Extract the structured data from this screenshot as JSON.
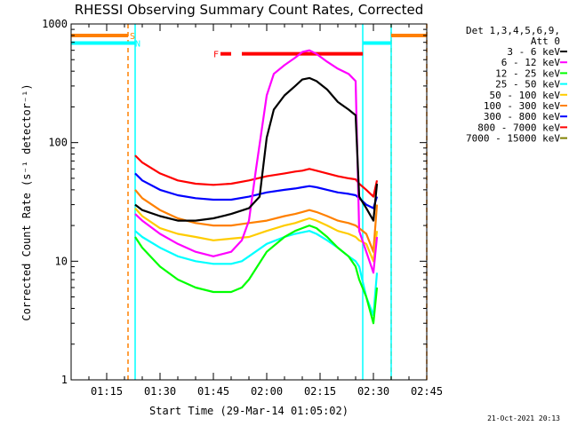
{
  "chart_data": {
    "type": "line",
    "title": "RHESSI Observing Summary Count Rates, Corrected",
    "xlabel": "Start Time (29-Mar-14 01:05:02)",
    "ylabel": "Corrected Count Rate (s⁻¹ detector⁻¹)",
    "y_scale": "log",
    "ylim": [
      1,
      1000
    ],
    "xlim_minutes": [
      0,
      100
    ],
    "y_ticks": [
      {
        "value": 1,
        "label": "1"
      },
      {
        "value": 10,
        "label": "10"
      },
      {
        "value": 100,
        "label": "100"
      },
      {
        "value": 1000,
        "label": "1000"
      }
    ],
    "x_ticks": [
      {
        "value": 10,
        "label": "01:15"
      },
      {
        "value": 25,
        "label": "01:30"
      },
      {
        "value": 40,
        "label": "01:45"
      },
      {
        "value": 55,
        "label": "02:00"
      },
      {
        "value": 70,
        "label": "02:15"
      },
      {
        "value": 85,
        "label": "02:30"
      },
      {
        "value": 100,
        "label": "02:45"
      }
    ],
    "legend_header": [
      "Det 1,3,4,5,6,9,",
      "Att 0"
    ],
    "series": [
      {
        "name": "3 - 6 keV",
        "color": "#000000",
        "x": [
          18,
          20,
          25,
          30,
          35,
          40,
          45,
          50,
          53,
          55,
          57,
          60,
          63,
          65,
          67,
          69,
          72,
          75,
          78,
          80,
          81,
          83,
          85,
          86
        ],
        "y": [
          30,
          27,
          24,
          22,
          22,
          23,
          25,
          28,
          35,
          110,
          190,
          250,
          300,
          340,
          350,
          330,
          280,
          220,
          190,
          170,
          35,
          28,
          22,
          45
        ]
      },
      {
        "name": "6 - 12 keV",
        "color": "#ff00ff",
        "x": [
          18,
          20,
          25,
          30,
          35,
          40,
          45,
          48,
          50,
          52,
          55,
          57,
          60,
          63,
          65,
          67,
          69,
          72,
          75,
          78,
          80,
          81,
          83,
          85,
          86
        ],
        "y": [
          25,
          22,
          17,
          14,
          12,
          11,
          12,
          15,
          22,
          60,
          250,
          380,
          450,
          520,
          580,
          600,
          560,
          480,
          420,
          380,
          330,
          18,
          12,
          8,
          16
        ]
      },
      {
        "name": "12 - 25 keV",
        "color": "#00ff00",
        "x": [
          18,
          20,
          25,
          30,
          35,
          40,
          45,
          48,
          50,
          55,
          60,
          63,
          65,
          67,
          69,
          72,
          75,
          78,
          80,
          81,
          83,
          85,
          86
        ],
        "y": [
          16,
          13,
          9,
          7,
          6,
          5.5,
          5.5,
          6,
          7,
          12,
          16,
          18,
          19,
          20,
          19,
          16,
          13,
          11,
          9,
          7,
          5,
          3,
          6
        ]
      },
      {
        "name": "25 - 50 keV",
        "color": "#00ffff",
        "x": [
          18,
          20,
          25,
          30,
          35,
          40,
          45,
          48,
          50,
          55,
          60,
          63,
          65,
          67,
          69,
          72,
          75,
          78,
          80,
          81,
          83,
          85,
          86
        ],
        "y": [
          18,
          16,
          13,
          11,
          10,
          9.5,
          9.5,
          10,
          11,
          14,
          16,
          17,
          17.5,
          18,
          17,
          15,
          13,
          11,
          10,
          9,
          5,
          3.5,
          8
        ]
      },
      {
        "name": "50 - 100 keV",
        "color": "#ffcc00",
        "x": [
          18,
          20,
          25,
          30,
          35,
          40,
          45,
          50,
          55,
          60,
          63,
          65,
          67,
          69,
          72,
          75,
          78,
          80,
          81,
          83,
          85,
          86
        ],
        "y": [
          28,
          24,
          19,
          17,
          16,
          15,
          15.5,
          16,
          18,
          20,
          21,
          22,
          23,
          22,
          20,
          18,
          17,
          16,
          15,
          14,
          10,
          18
        ]
      },
      {
        "name": "100 - 300 keV",
        "color": "#ff8000",
        "x": [
          18,
          20,
          25,
          30,
          35,
          40,
          45,
          50,
          55,
          60,
          63,
          65,
          67,
          69,
          72,
          75,
          78,
          80,
          81,
          83,
          85,
          86
        ],
        "y": [
          40,
          34,
          27,
          23,
          21,
          20,
          20,
          21,
          22,
          24,
          25,
          26,
          27,
          26,
          24,
          22,
          21,
          20,
          19,
          17,
          12,
          30
        ]
      },
      {
        "name": "300 - 800 keV",
        "color": "#0000ff",
        "x": [
          18,
          20,
          25,
          30,
          35,
          40,
          45,
          50,
          55,
          60,
          63,
          65,
          67,
          69,
          72,
          75,
          78,
          80,
          81,
          83,
          85,
          86
        ],
        "y": [
          55,
          48,
          40,
          36,
          34,
          33,
          33,
          35,
          38,
          40,
          41,
          42,
          43,
          42,
          40,
          38,
          37,
          36,
          34,
          30,
          28,
          35
        ]
      },
      {
        "name": "800 - 7000 keV",
        "color": "#ff0000",
        "x": [
          18,
          20,
          25,
          30,
          35,
          40,
          45,
          50,
          55,
          60,
          63,
          65,
          67,
          69,
          72,
          75,
          78,
          80,
          81,
          83,
          85,
          86
        ],
        "y": [
          78,
          68,
          55,
          48,
          45,
          44,
          45,
          48,
          52,
          55,
          57,
          58,
          60,
          58,
          55,
          52,
          50,
          49,
          45,
          40,
          35,
          48
        ]
      },
      {
        "name": "7000 - 15000 keV",
        "color": "#808000",
        "x": [],
        "y": []
      }
    ],
    "annotations": [
      {
        "text": "S",
        "color": "#ff8000",
        "x": 16,
        "y": 800
      },
      {
        "text": "N",
        "color": "#00ffff",
        "x": 17.5,
        "y": 690
      },
      {
        "text": "F",
        "color": "#ff0000",
        "x": 39.5,
        "y": 560
      }
    ],
    "flag_bars": [
      {
        "label": "S",
        "color": "#ff8000",
        "x_start": 0,
        "x_end": 16,
        "y": 800
      },
      {
        "label": "S",
        "color": "#ff8000",
        "x_start": 90,
        "x_end": 100,
        "y": 800
      },
      {
        "label": "N",
        "color": "#00ffff",
        "x_start": 0,
        "x_end": 18,
        "y": 690
      },
      {
        "label": "N",
        "color": "#00ffff",
        "x_start": 82,
        "x_end": 90,
        "y": 690
      },
      {
        "label": "F",
        "color": "#ff0000",
        "x_start": 42,
        "x_end": 45,
        "y": 560
      },
      {
        "label": "F",
        "color": "#ff0000",
        "x_start": 48,
        "x_end": 82,
        "y": 560
      }
    ],
    "vertical_markers": [
      {
        "color": "#ff8000",
        "style": "dashed",
        "x": 16
      },
      {
        "color": "#00ffff",
        "style": "solid",
        "x": 18
      },
      {
        "color": "#00ffff",
        "style": "solid",
        "x": 82
      },
      {
        "color": "#ff8000",
        "style": "dashed",
        "x": 90
      },
      {
        "color": "#00ffff",
        "style": "solid",
        "x": 90
      },
      {
        "color": "#ff8000",
        "style": "dashed",
        "x": 100
      }
    ],
    "legend_placement": "right",
    "grid": false
  },
  "footer": {
    "timestamp": "21-Oct-2021 20:13"
  }
}
